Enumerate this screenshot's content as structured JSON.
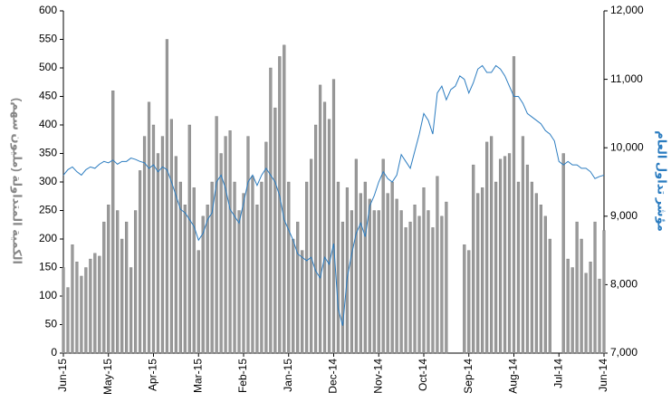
{
  "chart_data": {
    "type": "bar",
    "ylabel": "الكمية المتداولة (مليون سهم)",
    "y2label": "مؤشر تداول العام",
    "categories": [
      "Jun-15",
      null,
      null,
      null,
      null,
      null,
      null,
      null,
      null,
      null,
      "May-15",
      null,
      null,
      null,
      null,
      null,
      null,
      null,
      null,
      null,
      "Apr-15",
      null,
      null,
      null,
      null,
      null,
      null,
      null,
      null,
      null,
      "Mar-15",
      null,
      null,
      null,
      null,
      null,
      null,
      null,
      null,
      null,
      "Feb-15",
      null,
      null,
      null,
      null,
      null,
      null,
      null,
      null,
      null,
      "Jan-15",
      null,
      null,
      null,
      null,
      null,
      null,
      null,
      null,
      null,
      "Dec-14",
      null,
      null,
      null,
      null,
      null,
      null,
      null,
      null,
      null,
      "Nov-14",
      null,
      null,
      null,
      null,
      null,
      null,
      null,
      null,
      null,
      "Oct-14",
      null,
      null,
      null,
      null,
      null,
      null,
      null,
      null,
      null,
      "Sep-14",
      null,
      null,
      null,
      null,
      null,
      null,
      null,
      null,
      null,
      "Aug-14",
      null,
      null,
      null,
      null,
      null,
      null,
      null,
      null,
      null,
      "Jul-14",
      null,
      null,
      null,
      null,
      null,
      null,
      null,
      null,
      null,
      "Jun-14"
    ],
    "series": [
      {
        "type": "bar",
        "color": "#9a9a9a",
        "values": [
          150,
          115,
          190,
          160,
          135,
          150,
          165,
          175,
          170,
          230,
          260,
          460,
          250,
          200,
          230,
          150,
          250,
          320,
          380,
          440,
          400,
          350,
          380,
          550,
          410,
          345,
          300,
          260,
          400,
          290,
          180,
          240,
          260,
          300,
          415,
          350,
          380,
          390,
          300,
          250,
          280,
          380,
          310,
          260,
          300,
          370,
          500,
          430,
          520,
          540,
          300,
          200,
          230,
          180,
          300,
          340,
          400,
          470,
          440,
          410,
          480,
          300,
          230,
          290,
          250,
          340,
          280,
          300,
          270,
          250,
          250,
          340,
          280,
          300,
          270,
          250,
          220,
          230,
          260,
          240,
          290,
          250,
          220,
          310,
          240,
          265,
          null,
          null,
          null,
          190,
          180,
          330,
          280,
          290,
          370,
          380,
          300,
          340,
          345,
          350,
          520,
          300,
          380,
          330,
          300,
          280,
          260,
          240,
          200,
          null,
          null,
          350,
          165,
          150,
          230,
          200,
          140,
          160,
          230,
          130,
          215
        ]
      },
      {
        "type": "line",
        "axis": "y2",
        "color": "#2b7cc0",
        "values": [
          9600,
          9680,
          9720,
          9650,
          9600,
          9680,
          9720,
          9700,
          9760,
          9800,
          9780,
          9820,
          9760,
          9800,
          9800,
          9850,
          9830,
          9800,
          9780,
          9700,
          9750,
          9650,
          9720,
          9680,
          9500,
          9300,
          9100,
          9050,
          8950,
          8850,
          8650,
          8750,
          8950,
          9050,
          9500,
          9600,
          9400,
          9100,
          9000,
          8900,
          9200,
          9500,
          9600,
          9450,
          9600,
          9700,
          9600,
          9500,
          9300,
          8950,
          8800,
          8650,
          8450,
          8400,
          8350,
          8400,
          8200,
          8100,
          8400,
          8300,
          8600,
          7650,
          7400,
          8100,
          8450,
          8750,
          8900,
          8700,
          9150,
          9300,
          9500,
          9650,
          9550,
          9500,
          9600,
          9900,
          9800,
          9700,
          9950,
          10200,
          10500,
          10400,
          10200,
          10800,
          10900,
          10700,
          10850,
          10900,
          11050,
          11000,
          10800,
          10950,
          11150,
          11200,
          11100,
          11100,
          11200,
          11150,
          11050,
          10900,
          10750,
          10750,
          10650,
          10500,
          10450,
          10400,
          10350,
          10250,
          10200,
          10100,
          9800,
          9750,
          9800,
          9750,
          9750,
          9700,
          9700,
          9650,
          9550,
          9580,
          9600
        ]
      }
    ],
    "ylim": [
      0,
      600
    ],
    "yticks": [
      0,
      50,
      100,
      150,
      200,
      250,
      300,
      350,
      400,
      450,
      500,
      550,
      600
    ],
    "y2lim": [
      7000,
      12000
    ],
    "y2ticks": [
      {
        "value": 7000,
        "label": "7,000"
      },
      {
        "value": 8000,
        "label": "8,000"
      },
      {
        "value": 9000,
        "label": "9,000"
      },
      {
        "value": 10000,
        "label": "10,000"
      },
      {
        "value": 11000,
        "label": "11,000"
      },
      {
        "value": 12000,
        "label": "12,000"
      }
    ]
  }
}
